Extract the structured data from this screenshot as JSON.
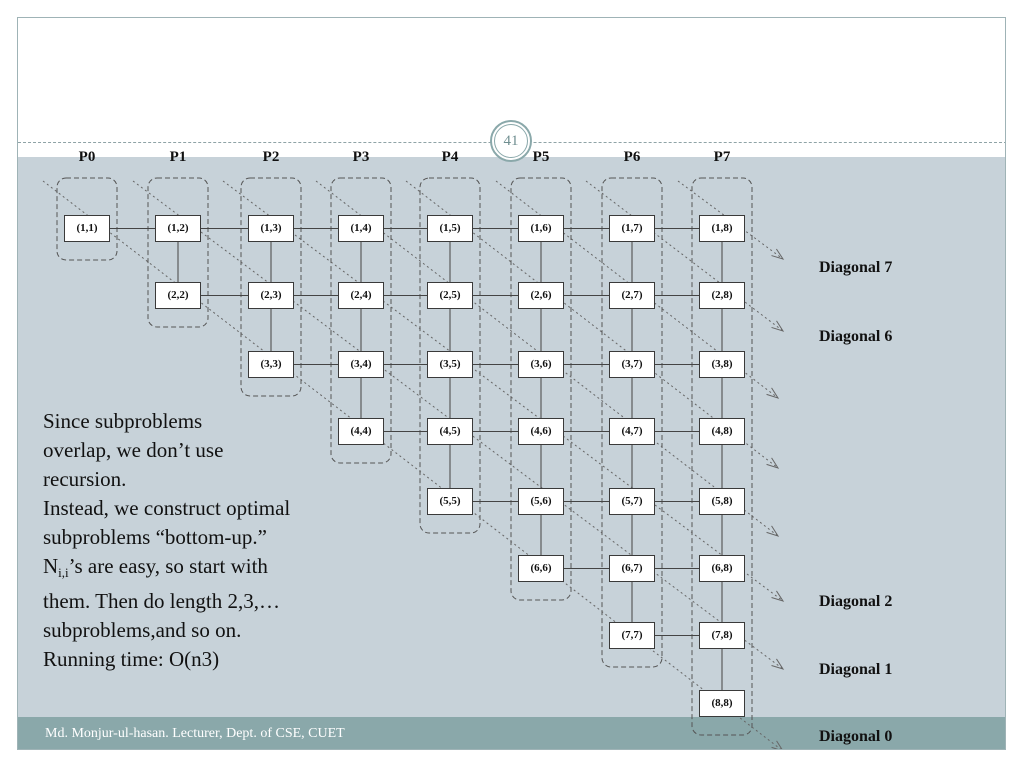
{
  "slide_number": "41",
  "processors": [
    "P0",
    "P1",
    "P2",
    "P3",
    "P4",
    "P5",
    "P6",
    "P7"
  ],
  "diagonal_labels": {
    "d7": "Diagonal 7",
    "d6": "Diagonal 6",
    "d2": "Diagonal 2",
    "d1": "Diagonal 1",
    "d0": "Diagonal 0"
  },
  "body": {
    "line1": "Since subproblems",
    "line2": "overlap, we don’t use",
    "line3": "recursion.",
    "line4": "Instead, we construct optimal",
    "line5": "subproblems “bottom-up.”",
    "line6_prefix": "N",
    "line6_sub": "i,i",
    "line6_rest": "’s are easy, so start with",
    "line7": "them. Then do length 2,3,…",
    "line8": "subproblems,and so on.",
    "line9": "Running time: O(n3)"
  },
  "footer": "Md. Monjur-ul-hasan. Lecturer, Dept. of CSE, CUET"
}
